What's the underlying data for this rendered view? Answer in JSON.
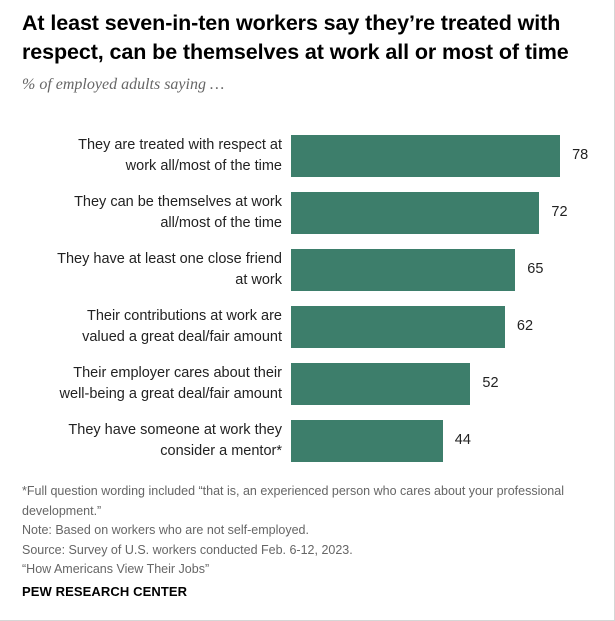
{
  "header": {
    "title": "At least seven-in-ten workers say they’re treated with respect, can be themselves at work all or most of time",
    "subtitle": "% of employed adults saying …"
  },
  "chart_data": {
    "type": "bar",
    "orientation": "horizontal",
    "title": "At least seven-in-ten workers say they’re treated with respect, can be themselves at work all or most of time",
    "ylabel": "% of employed adults saying …",
    "categories": [
      "They are treated with respect at work all/most of the time",
      "They can be themselves at work all/most of the time",
      "They have at least one close friend at work",
      "Their contributions at work are valued a great deal/fair amount",
      "Their employer cares about their well-being a great deal/fair amount",
      "They have someone at work they consider a mentor*"
    ],
    "label_lines": [
      [
        "They are treated with respect at",
        "work all/most of the time"
      ],
      [
        "They can be themselves at work",
        "all/most of the time"
      ],
      [
        "They have at least one close friend",
        "at work"
      ],
      [
        "Their contributions at work are",
        "valued a great deal/fair amount"
      ],
      [
        "Their employer cares about their",
        "well-being a great deal/fair amount"
      ],
      [
        "They have someone at work they",
        "consider a mentor*"
      ]
    ],
    "values": [
      78,
      72,
      65,
      62,
      52,
      44
    ],
    "xlim": [
      0,
      100
    ],
    "bar_color": "#3d7e6b"
  },
  "footnotes": {
    "note1": "*Full question wording included “that is, an experienced person who cares about your professional development.”",
    "note2": "Note: Based on workers who are not self-employed.",
    "source": "Source: Survey of U.S. workers conducted Feb. 6-12, 2023.",
    "report": "“How Americans View Their Jobs”"
  },
  "brand": "PEW RESEARCH CENTER"
}
